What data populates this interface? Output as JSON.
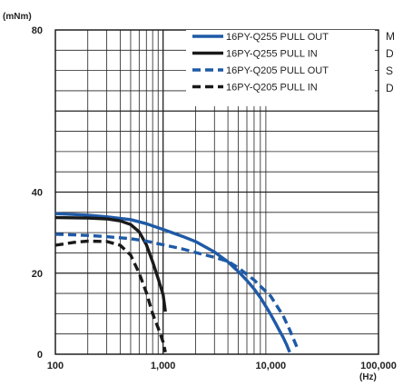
{
  "chart_data": {
    "type": "line",
    "ylabel": "(mNm)",
    "xlabel": "(Hz)",
    "x_scale": "log",
    "xlim": [
      100,
      100000
    ],
    "ylim": [
      0,
      80
    ],
    "grid": true,
    "legend_position": "top-right",
    "x_ticks": [
      {
        "value": 100,
        "label": "100"
      },
      {
        "value": 1000,
        "label": "1,000"
      },
      {
        "value": 10000,
        "label": "10,000"
      },
      {
        "value": 100000,
        "label": "100,000"
      }
    ],
    "y_ticks": [
      {
        "value": 0,
        "label": "0"
      },
      {
        "value": 20,
        "label": "20"
      },
      {
        "value": 40,
        "label": "40"
      },
      {
        "value": 80,
        "label": "80"
      }
    ],
    "series": [
      {
        "name": "16PY-Q255 PULL OUT",
        "color": "#1f5aa6",
        "style": "solid",
        "points": [
          [
            100,
            34.7
          ],
          [
            200,
            34.3
          ],
          [
            300,
            33.9
          ],
          [
            500,
            33.2
          ],
          [
            700,
            32.2
          ],
          [
            1000,
            30.8
          ],
          [
            1500,
            29.1
          ],
          [
            2000,
            27.8
          ],
          [
            3000,
            25.2
          ],
          [
            4000,
            22.8
          ],
          [
            5000,
            20.4
          ],
          [
            6000,
            18.2
          ],
          [
            7000,
            16.1
          ],
          [
            8000,
            14.0
          ],
          [
            9000,
            11.8
          ],
          [
            10000,
            9.8
          ],
          [
            11000,
            7.8
          ],
          [
            12000,
            5.9
          ],
          [
            13000,
            4.2
          ],
          [
            14000,
            2.4
          ],
          [
            15000,
            0.5
          ]
        ]
      },
      {
        "name": "16PY-Q255 PULL IN",
        "color": "#1a1a1a",
        "style": "solid",
        "points": [
          [
            100,
            33.7
          ],
          [
            200,
            33.6
          ],
          [
            300,
            33.4
          ],
          [
            400,
            32.9
          ],
          [
            500,
            32.0
          ],
          [
            600,
            30.2
          ],
          [
            700,
            27.0
          ],
          [
            800,
            22.8
          ],
          [
            900,
            18.7
          ],
          [
            1000,
            14.7
          ],
          [
            1050,
            10.5
          ]
        ]
      },
      {
        "name": "16PY-Q205 PULL OUT",
        "color": "#1f5aa6",
        "style": "dashed",
        "points": [
          [
            100,
            29.6
          ],
          [
            200,
            29.3
          ],
          [
            300,
            29.0
          ],
          [
            500,
            28.5
          ],
          [
            700,
            27.9
          ],
          [
            1000,
            27.0
          ],
          [
            1500,
            26.0
          ],
          [
            2000,
            25.1
          ],
          [
            3000,
            23.9
          ],
          [
            4000,
            22.9
          ],
          [
            5000,
            21.3
          ],
          [
            7000,
            18.3
          ],
          [
            10000,
            14.3
          ],
          [
            13000,
            9.5
          ],
          [
            15000,
            6.0
          ],
          [
            17000,
            2.5
          ],
          [
            18000,
            1.0
          ]
        ]
      },
      {
        "name": "16PY-Q205 PULL IN",
        "color": "#1a1a1a",
        "style": "dashed",
        "points": [
          [
            100,
            26.9
          ],
          [
            150,
            27.6
          ],
          [
            200,
            27.9
          ],
          [
            300,
            27.8
          ],
          [
            400,
            26.9
          ],
          [
            500,
            24.5
          ],
          [
            600,
            20.0
          ],
          [
            700,
            15.2
          ],
          [
            800,
            10.0
          ],
          [
            900,
            6.5
          ],
          [
            1000,
            3.0
          ],
          [
            1050,
            0.5
          ]
        ]
      }
    ]
  },
  "side_note_lines": [
    "M",
    "D",
    "S",
    "D"
  ]
}
